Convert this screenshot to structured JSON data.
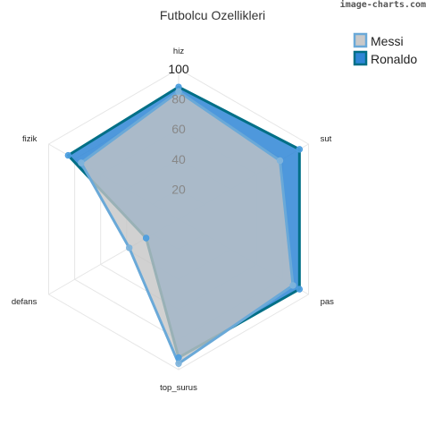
{
  "watermark": "image-charts.com",
  "chart_data": {
    "type": "radar",
    "title": "Futbolcu Ozellikleri",
    "axes": [
      "hiz",
      "sut",
      "pas",
      "top_surus",
      "defans",
      "fizik"
    ],
    "r_ticks": [
      "20",
      "40",
      "60",
      "80",
      "100"
    ],
    "r_range": [
      0,
      100
    ],
    "grid": true,
    "legend_position": "top-right",
    "series": [
      {
        "name": "Messi",
        "values": [
          85,
          78,
          88,
          96,
          38,
          75
        ],
        "fill": "#c4c4c4",
        "stroke": "#6aa9d8",
        "point": "#7fb4dc",
        "legend_fill": "#c9c9c9",
        "legend_stroke": "#6aa9d8"
      },
      {
        "name": "Ronaldo",
        "values": [
          88,
          93,
          93,
          92,
          25,
          85
        ],
        "fill": "#2f86d6",
        "stroke": "#006f86",
        "point": "#4d9ee0",
        "legend_fill": "#2f86d6",
        "legend_stroke": "#006f86"
      }
    ]
  }
}
